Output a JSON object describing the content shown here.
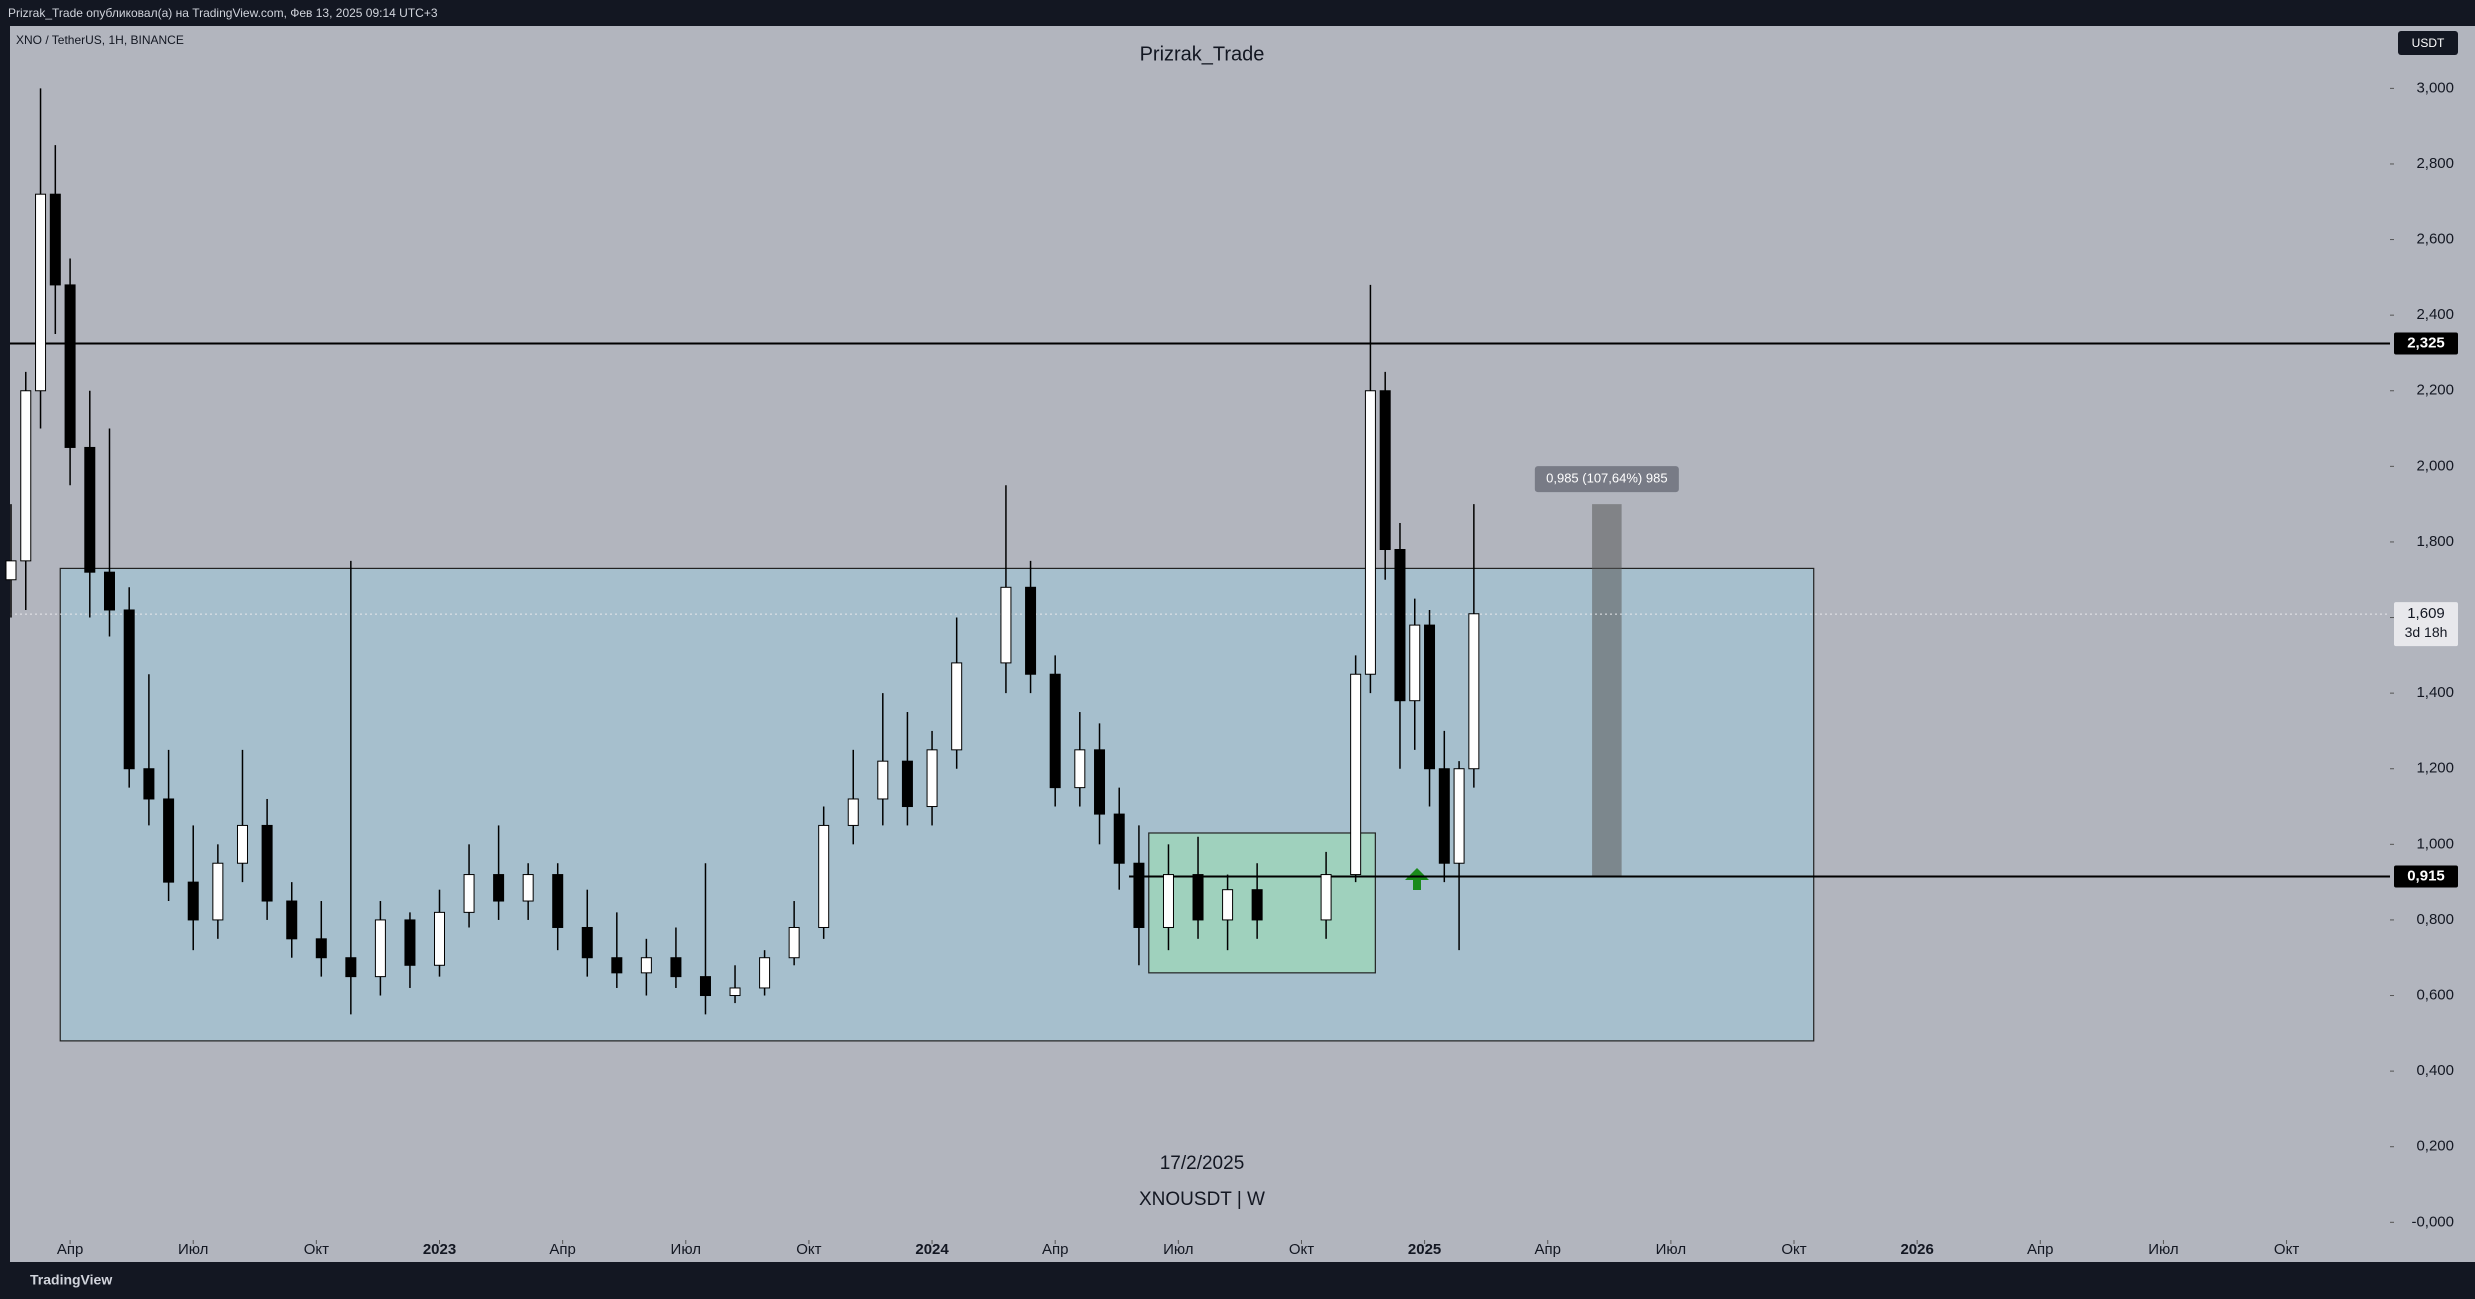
{
  "header": {
    "text": "Prizrak_Trade опубликовал(а) на TradingView.com, Фев 13, 2025 09:14 UTC+3"
  },
  "footer": {
    "logo": "TradingView"
  },
  "chart_data": {
    "type": "candlestick",
    "symbol_label": "XNO / TetherUS, 1Н, BINANCE",
    "title": "Prizrak_Trade",
    "date_label": "17/2/2025",
    "ticker_label": "XNOUSDT | W",
    "currency": "USDT",
    "x": [
      2022.13,
      2022.16,
      2022.19,
      2022.22,
      2022.25,
      2022.29,
      2022.33,
      2022.37,
      2022.41,
      2022.45,
      2022.5,
      2022.55,
      2022.6,
      2022.65,
      2022.7,
      2022.76,
      2022.82,
      2022.88,
      2022.94,
      2023.0,
      2023.06,
      2023.12,
      2023.18,
      2023.24,
      2023.3,
      2023.36,
      2023.42,
      2023.48,
      2023.54,
      2023.6,
      2023.66,
      2023.72,
      2023.78,
      2023.84,
      2023.9,
      2023.95,
      2024.0,
      2024.05,
      2024.15,
      2024.2,
      2024.25,
      2024.3,
      2024.34,
      2024.38,
      2024.42,
      2024.48,
      2024.54,
      2024.6,
      2024.66,
      2024.8,
      2024.86,
      2024.89,
      2024.92,
      2024.95,
      2024.98,
      2025.01,
      2025.04,
      2025.07,
      2025.1
    ],
    "open": [
      1.7,
      1.75,
      2.2,
      2.72,
      2.48,
      2.05,
      1.72,
      1.62,
      1.2,
      1.12,
      0.9,
      0.8,
      0.95,
      1.05,
      0.85,
      0.75,
      0.7,
      0.65,
      0.8,
      0.68,
      0.82,
      0.92,
      0.85,
      0.92,
      0.78,
      0.7,
      0.66,
      0.7,
      0.65,
      0.6,
      0.62,
      0.7,
      0.78,
      1.05,
      1.12,
      1.22,
      1.1,
      1.25,
      1.48,
      1.68,
      1.45,
      1.15,
      1.25,
      1.08,
      0.95,
      0.78,
      0.92,
      0.8,
      0.88,
      0.8,
      0.92,
      1.45,
      2.2,
      1.78,
      1.38,
      1.58,
      1.2,
      0.95,
      1.2
    ],
    "high": [
      1.9,
      2.25,
      3.0,
      2.85,
      2.55,
      2.2,
      2.1,
      1.68,
      1.45,
      1.25,
      1.05,
      1.0,
      1.25,
      1.12,
      0.9,
      0.85,
      1.75,
      0.85,
      0.82,
      0.88,
      1.0,
      1.05,
      0.95,
      0.95,
      0.88,
      0.82,
      0.75,
      0.78,
      0.95,
      0.68,
      0.72,
      0.85,
      1.1,
      1.25,
      1.4,
      1.35,
      1.3,
      1.6,
      1.95,
      1.75,
      1.5,
      1.35,
      1.32,
      1.15,
      1.05,
      1.0,
      1.02,
      0.92,
      0.95,
      0.98,
      1.5,
      2.48,
      2.25,
      1.85,
      1.65,
      1.62,
      1.3,
      1.22,
      1.9
    ],
    "low": [
      1.6,
      1.62,
      2.1,
      2.35,
      1.95,
      1.6,
      1.55,
      1.15,
      1.05,
      0.85,
      0.72,
      0.75,
      0.9,
      0.8,
      0.7,
      0.65,
      0.55,
      0.6,
      0.62,
      0.65,
      0.78,
      0.8,
      0.8,
      0.72,
      0.65,
      0.62,
      0.6,
      0.62,
      0.55,
      0.58,
      0.6,
      0.68,
      0.75,
      1.0,
      1.05,
      1.05,
      1.05,
      1.2,
      1.4,
      1.4,
      1.1,
      1.1,
      1.0,
      0.88,
      0.68,
      0.72,
      0.75,
      0.72,
      0.75,
      0.75,
      0.9,
      1.4,
      1.7,
      1.2,
      1.25,
      1.1,
      0.9,
      0.72,
      1.15
    ],
    "close": [
      1.75,
      2.2,
      2.72,
      2.48,
      2.05,
      1.72,
      1.62,
      1.2,
      1.12,
      0.9,
      0.8,
      0.95,
      1.05,
      0.85,
      0.75,
      0.7,
      0.65,
      0.8,
      0.68,
      0.82,
      0.92,
      0.85,
      0.92,
      0.78,
      0.7,
      0.66,
      0.7,
      0.65,
      0.6,
      0.62,
      0.7,
      0.78,
      1.05,
      1.12,
      1.22,
      1.1,
      1.25,
      1.48,
      1.68,
      1.45,
      1.15,
      1.25,
      1.08,
      0.95,
      0.78,
      0.92,
      0.8,
      0.88,
      0.8,
      0.92,
      1.45,
      2.2,
      1.78,
      1.38,
      1.58,
      1.2,
      0.95,
      1.2,
      1.61
    ],
    "up_color": "#ffffff",
    "down_color": "#000000",
    "xlim": [
      2022.128,
      2026.96
    ],
    "xticks": [
      {
        "value": 2022.25,
        "label": "Апр"
      },
      {
        "value": 2022.5,
        "label": "Июл"
      },
      {
        "value": 2022.75,
        "label": "Окт"
      },
      {
        "value": 2023,
        "label": "2023"
      },
      {
        "value": 2023.25,
        "label": "Апр"
      },
      {
        "value": 2023.5,
        "label": "Июл"
      },
      {
        "value": 2023.75,
        "label": "Окт"
      },
      {
        "value": 2024,
        "label": "2024"
      },
      {
        "value": 2024.25,
        "label": "Апр"
      },
      {
        "value": 2024.5,
        "label": "Июл"
      },
      {
        "value": 2024.75,
        "label": "Окт"
      },
      {
        "value": 2025,
        "label": "2025"
      },
      {
        "value": 2025.25,
        "label": "Апр"
      },
      {
        "value": 2025.5,
        "label": "Июл"
      },
      {
        "value": 2025.75,
        "label": "Окт"
      },
      {
        "value": 2026,
        "label": "2026"
      },
      {
        "value": 2026.25,
        "label": "Апр"
      },
      {
        "value": 2026.5,
        "label": "Июл"
      },
      {
        "value": 2026.75,
        "label": "Окт"
      }
    ],
    "ylim": [
      -0.105,
      3.165
    ],
    "yticks": [
      {
        "value": 0,
        "label": "-0,000"
      },
      {
        "value": 0.2,
        "label": "0,200"
      },
      {
        "value": 0.4,
        "label": "0,400"
      },
      {
        "value": 0.6,
        "label": "0,600"
      },
      {
        "value": 0.8,
        "label": "0,800"
      },
      {
        "value": 1.0,
        "label": "1,000"
      },
      {
        "value": 1.2,
        "label": "1,200"
      },
      {
        "value": 1.4,
        "label": "1,400"
      },
      {
        "value": 1.6,
        "label": "1,600"
      },
      {
        "value": 1.8,
        "label": "1,800"
      },
      {
        "value": 2.0,
        "label": "2,000"
      },
      {
        "value": 2.2,
        "label": "2,200"
      },
      {
        "value": 2.4,
        "label": "2,400"
      },
      {
        "value": 2.6,
        "label": "2,600"
      },
      {
        "value": 2.8,
        "label": "2,800"
      },
      {
        "value": 3.0,
        "label": "3,000"
      }
    ],
    "levels": [
      {
        "value": 2.325,
        "label": "2,325"
      },
      {
        "value": 0.915,
        "label": "0,915"
      }
    ],
    "last_price": {
      "value": 1.609,
      "label": "1,609",
      "countdown": "3d 18h"
    },
    "zones": [
      {
        "x0": 2022.23,
        "x1": 2025.79,
        "top": 1.73,
        "bottom": 0.48
      },
      {
        "x0": 2024.44,
        "x1": 2024.9,
        "top": 1.03,
        "bottom": 0.66
      }
    ],
    "measure": {
      "x0": 2025.34,
      "x1": 2025.4,
      "from": 0.915,
      "to": 1.9,
      "label": "0,985 (107,64%) 985"
    }
  }
}
